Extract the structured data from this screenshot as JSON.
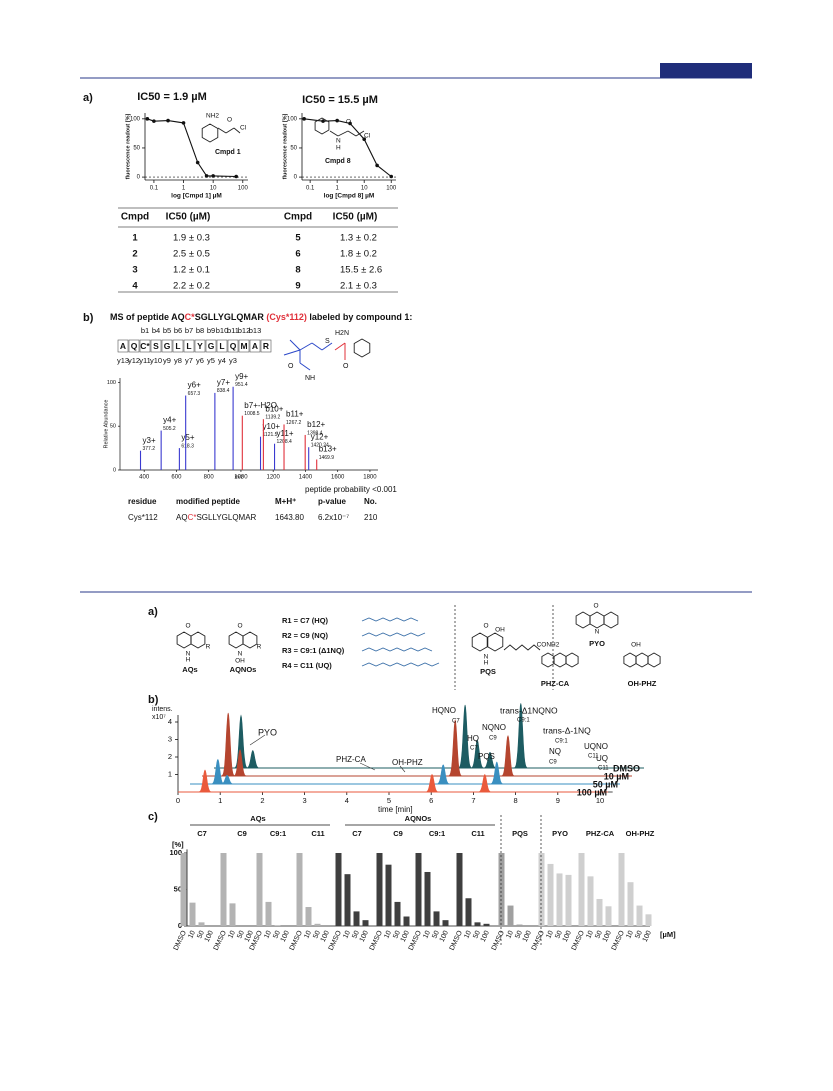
{
  "fig1": {
    "panel_a": "a)",
    "panel_b": "b)",
    "chem1": [
      "NH2",
      "O",
      "Cl",
      "Cmpd 1"
    ],
    "chem8": [
      "O",
      "N",
      "H",
      "Cl",
      "Cmpd 8"
    ],
    "table": {
      "headers": [
        "Cmpd",
        "IC50 (µM)",
        "Cmpd",
        "IC50 (µM)"
      ],
      "rows": [
        [
          "1",
          "1.9 ± 0.3",
          "5",
          "1.3 ± 0.2"
        ],
        [
          "2",
          "2.5 ± 0.5",
          "6",
          "1.8 ± 0.2"
        ],
        [
          "3",
          "1.2 ± 0.1",
          "8",
          "15.5 ± 2.6"
        ],
        [
          "4",
          "2.2 ± 0.2",
          "9",
          "2.1 ± 0.3"
        ]
      ]
    },
    "ms_title": [
      "MS of peptide AQ",
      "C*",
      "SGLLYGLQMAR ",
      "(Cys*112)",
      " labeled by compound 1:"
    ],
    "sequence": [
      "A",
      "Q",
      "C*",
      "S",
      "G",
      "L",
      "L",
      "Y",
      "G",
      "L",
      "Q",
      "M",
      "A",
      "R"
    ],
    "b_ions": [
      "b1",
      "b4",
      "b5",
      "b6",
      "b7",
      "b8",
      "b9",
      "b10",
      "b11",
      "b12",
      "b13"
    ],
    "y_ions": [
      "y13",
      "y12",
      "y11",
      "y10",
      "y9",
      "y8",
      "y7",
      "y6",
      "y5",
      "y4",
      "y3"
    ],
    "chem_mod": [
      "H2N",
      "O",
      "S",
      "NH",
      "O"
    ],
    "probability": "peptide probability <0.001",
    "result_table": {
      "headers": [
        "residue",
        "modified peptide",
        "M+H⁺",
        "p-value",
        "No."
      ],
      "residue": "Cys*112",
      "peptide": [
        "AQ",
        "C*",
        "SGLLYGLQMAR"
      ],
      "mh": "1643.80",
      "p": "6.2x10⁻⁷",
      "no": "210"
    }
  },
  "fig2": {
    "panel_a": "a)",
    "panel_b": "b)",
    "panel_c": "c)",
    "structures": [
      "AQs",
      "AQNOs",
      "PQS",
      "PYO",
      "PHZ-CA",
      "OH-PHZ"
    ],
    "atoms": [
      "O",
      "R",
      "N",
      "H",
      "O",
      "R",
      "N",
      "OH",
      "O",
      "OH",
      "N",
      "H",
      "O",
      "N",
      "N",
      "CONH2",
      "OH"
    ],
    "r_groups": [
      "R1 = C7 (HQ)",
      "R2 = C9 (NQ)",
      "R3 = C9:1 (Δ1NQ)",
      "R4 = C11 (UQ)"
    ],
    "annotations": [
      "PYO",
      "PHZ-CA",
      "OH-PHZ",
      "HQNO",
      "C7",
      "HQ",
      "C7",
      "PQS",
      "NQNO",
      "C9",
      "trans-Δ1NQNO",
      "C9:1",
      "trans-Δ-1NQ",
      "C9:1",
      "NQ",
      "C9",
      "UQNO",
      "C11",
      "UQ",
      "C11"
    ],
    "super_groups": [
      "AQs",
      "AQNOs"
    ],
    "unit_label": "[µM]"
  },
  "chart_data": [
    {
      "type": "dose",
      "title": "IC50 = 1.9 µM",
      "xlabel": "log [Cmpd 1] µM",
      "ylabel": "fluorescence readout [%]",
      "xscale": "log",
      "x": [
        0.06,
        0.1,
        0.3,
        1,
        3,
        6,
        10,
        60
      ],
      "values": [
        100,
        96,
        97,
        93,
        25,
        2,
        2,
        1
      ],
      "xlim": [
        0.05,
        150
      ],
      "xticks": [
        0.1,
        1,
        10,
        100
      ],
      "ylim": [
        -5,
        110
      ],
      "yticks": [
        0,
        50,
        100
      ],
      "color": "#111111"
    },
    {
      "type": "dose",
      "title": "IC50 = 15.5 µM",
      "xlabel": "log [Cmpd 8] µM",
      "ylabel": "fluorescence readout [%]",
      "xscale": "log",
      "x": [
        0.06,
        0.3,
        1,
        3,
        10,
        30,
        100
      ],
      "values": [
        100,
        96,
        97,
        92,
        65,
        20,
        1
      ],
      "xlim": [
        0.05,
        150
      ],
      "xticks": [
        0.1,
        1,
        10,
        100
      ],
      "ylim": [
        -5,
        110
      ],
      "yticks": [
        0,
        50,
        100
      ],
      "color": "#111111"
    },
    {
      "type": "spectrum",
      "xlabel": "m/z",
      "ylabel": "Relative Abundance",
      "xlim": [
        250,
        1850
      ],
      "xticks": [
        400,
        600,
        800,
        1000,
        1200,
        1400,
        1600,
        1800
      ],
      "ylim": [
        0,
        105
      ],
      "yticks": [
        0,
        50,
        100
      ],
      "ions": [
        "y3+",
        "y4+",
        "y5+",
        "y6+",
        "y7+",
        "y9+",
        "b7+-H2O",
        "y10+",
        "b10+",
        "y11+",
        "b11+",
        "b12+",
        "y12+",
        "b13+"
      ],
      "x": [
        377.2,
        505.2,
        618.3,
        657.3,
        838.4,
        951.4,
        1008.5,
        1121.5,
        1139.2,
        1208.4,
        1267.2,
        1398.4,
        1420.24,
        1469.9
      ],
      "values": [
        22,
        45,
        25,
        85,
        88,
        95,
        62,
        38,
        58,
        30,
        52,
        40,
        26,
        12
      ],
      "colors": [
        "#3a3ad0",
        "#3a3ad0",
        "#3a3ad0",
        "#3a3ad0",
        "#3a3ad0",
        "#3a3ad0",
        "#e0303a",
        "#3a3ad0",
        "#e0303a",
        "#3a3ad0",
        "#e0303a",
        "#e0303a",
        "#3a3ad0",
        "#e0303a"
      ]
    },
    {
      "type": "chromatogram",
      "ylabel": "intens.",
      "yunit": "x10⁷",
      "xlabel": "time [min]",
      "xlim": [
        0,
        10.3
      ],
      "xticks": [
        0,
        1,
        2,
        3,
        4,
        5,
        6,
        7,
        8,
        9,
        10
      ],
      "ylim": [
        0,
        4.4
      ],
      "yticks": [
        1,
        2,
        3,
        4
      ],
      "series": [
        {
          "name": "DMSO",
          "color": "#1d5c62",
          "x": [
            0.64,
            0.92,
            5.95,
            6.24,
            6.54,
            7.27
          ],
          "values": [
            3.0,
            1.0,
            3.6,
            1.6,
            0.9,
            3.7
          ]
        },
        {
          "name": "10 µM",
          "color": "#b5452f",
          "x": [
            0.62,
            0.9,
            6.0,
            7.25
          ],
          "values": [
            3.6,
            1.5,
            3.2,
            2.3
          ]
        },
        {
          "name": "50 µM",
          "color": "#3a8fc0",
          "x": [
            0.66,
            0.88,
            6.0,
            7.27
          ],
          "values": [
            1.4,
            0.5,
            1.1,
            1.25
          ]
        },
        {
          "name": "100 µM",
          "color": "#ea5a3c",
          "x": [
            0.64,
            6.02,
            7.27
          ],
          "values": [
            1.25,
            1.0,
            1.0
          ]
        }
      ]
    },
    {
      "type": "grouped_bar",
      "ylabel": "[%]",
      "categories": [
        "DMSO",
        "10",
        "50",
        "100"
      ],
      "ylim": [
        0,
        105
      ],
      "yticks": [
        0,
        50,
        100
      ],
      "series": [
        {
          "name": "C7",
          "color": "#b3b3b3",
          "values": [
            100,
            32,
            5,
            0
          ]
        },
        {
          "name": "C9",
          "color": "#b3b3b3",
          "values": [
            100,
            31,
            0,
            0
          ]
        },
        {
          "name": "C9:1",
          "color": "#b3b3b3",
          "values": [
            100,
            33,
            1,
            0
          ]
        },
        {
          "name": "C11",
          "color": "#b3b3b3",
          "values": [
            100,
            26,
            3,
            0
          ]
        },
        {
          "name": "C7",
          "color": "#3f3f3f",
          "values": [
            100,
            71,
            20,
            8
          ]
        },
        {
          "name": "C9",
          "color": "#3f3f3f",
          "values": [
            100,
            84,
            33,
            13
          ]
        },
        {
          "name": "C9:1",
          "color": "#3f3f3f",
          "values": [
            100,
            74,
            20,
            8
          ]
        },
        {
          "name": "C11",
          "color": "#3f3f3f",
          "values": [
            100,
            38,
            5,
            3
          ]
        },
        {
          "name": "PQS",
          "color": "#a0a0a0",
          "values": [
            100,
            28,
            2,
            0
          ]
        },
        {
          "name": "PYO",
          "color": "#cfcfcf",
          "values": [
            100,
            85,
            72,
            70
          ]
        },
        {
          "name": "PHZ-CA",
          "color": "#cfcfcf",
          "values": [
            100,
            68,
            37,
            27
          ]
        },
        {
          "name": "OH-PHZ",
          "color": "#cfcfcf",
          "values": [
            100,
            60,
            28,
            16
          ]
        }
      ]
    }
  ]
}
